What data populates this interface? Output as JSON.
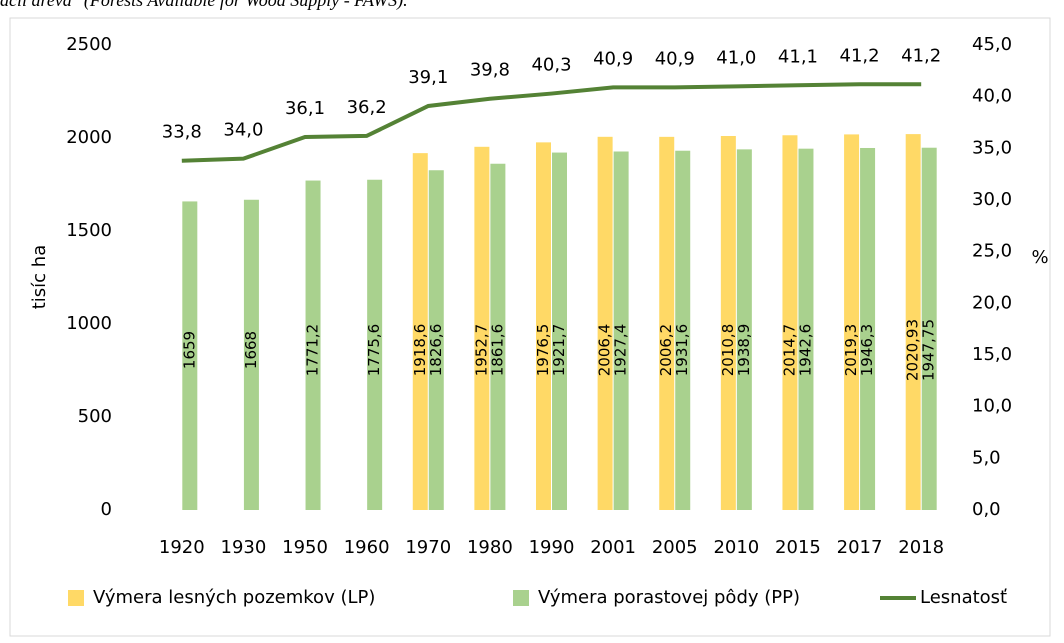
{
  "caption": "ácii dreva\" (Forests Available for Wood Supply - FAWS).",
  "chart_data": {
    "type": "bar_line",
    "ylabel": "tisíc ha",
    "y2label": "%",
    "categories": [
      "1920",
      "1930",
      "1950",
      "1960",
      "1970",
      "1980",
      "1990",
      "2001",
      "2005",
      "2010",
      "2015",
      "2017",
      "2018"
    ],
    "ylim": [
      0,
      2500
    ],
    "yticks": [
      0,
      500,
      1000,
      1500,
      2000,
      2500
    ],
    "y2lim": [
      0,
      45
    ],
    "y2ticks": [
      {
        "value": 0,
        "label": "0,0"
      },
      {
        "value": 5,
        "label": "5,0"
      },
      {
        "value": 10,
        "label": "10,0"
      },
      {
        "value": 15,
        "label": "15,0"
      },
      {
        "value": 20,
        "label": "20,0"
      },
      {
        "value": 25,
        "label": "25,0"
      },
      {
        "value": 30,
        "label": "30,0"
      },
      {
        "value": 35,
        "label": "35,0"
      },
      {
        "value": 40,
        "label": "40,0"
      },
      {
        "value": 45,
        "label": "45,0"
      }
    ],
    "grid": false,
    "legend": "bottom",
    "series": [
      {
        "name": "Výmera lesných pozemkov (LP)",
        "type": "bar",
        "color": "#ffd966",
        "values": [
          null,
          null,
          null,
          null,
          1918.6,
          1952.7,
          1976.5,
          2006.4,
          2006.2,
          2010.8,
          2014.7,
          2019.3,
          2020.93
        ],
        "value_labels": [
          null,
          null,
          null,
          null,
          "1918,6",
          "1952,7",
          "1976,5",
          "2006,4",
          "2006,2",
          "2010,8",
          "2014,7",
          "2019,3",
          "2020,93"
        ]
      },
      {
        "name": "Výmera porastovej pôdy (PP)",
        "type": "bar",
        "color": "#a9d18e",
        "values": [
          1659,
          1668,
          1771.2,
          1775.6,
          1826.6,
          1861.6,
          1921.7,
          1927.4,
          1931.6,
          1938.9,
          1942.6,
          1946.3,
          1947.75
        ],
        "value_labels": [
          "1659",
          "1668",
          "1771,2",
          "1775,6",
          "1826,6",
          "1861,6",
          "1921,7",
          "1927,4",
          "1931,6",
          "1938,9",
          "1942,6",
          "1946,3",
          "1947,75"
        ]
      },
      {
        "name": "Lesnatosť",
        "type": "line",
        "axis": "y2",
        "color": "#548235",
        "values": [
          33.8,
          34.0,
          36.1,
          36.2,
          39.1,
          39.8,
          40.3,
          40.9,
          40.9,
          41.0,
          41.1,
          41.2,
          41.2
        ],
        "value_labels": [
          "33,8",
          "34,0",
          "36,1",
          "36,2",
          "39,1",
          "39,8",
          "40,3",
          "40,9",
          "40,9",
          "41,0",
          "41,1",
          "41,2",
          "41,2"
        ]
      }
    ]
  }
}
